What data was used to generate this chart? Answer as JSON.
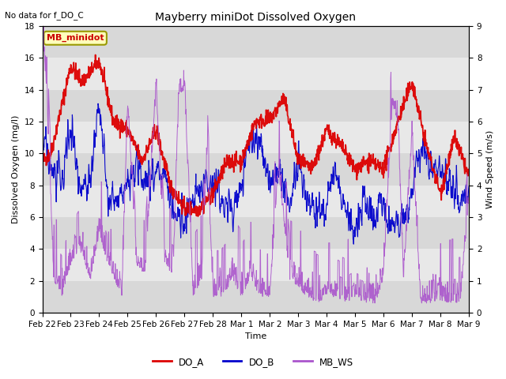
{
  "title": "Mayberry miniDot Dissolved Oxygen",
  "top_left_text": "No data for f_DO_C",
  "annotation_box": "MB_minidot",
  "xlabel": "Time",
  "ylabel_left": "Dissolved Oxygen (mg/l)",
  "ylabel_right": "Wind Speed (m/s)",
  "ylim_left": [
    0,
    18
  ],
  "ylim_right": [
    0.0,
    9.0
  ],
  "yticks_left": [
    0,
    2,
    4,
    6,
    8,
    10,
    12,
    14,
    16,
    18
  ],
  "yticks_right": [
    0.0,
    1.0,
    2.0,
    3.0,
    4.0,
    5.0,
    6.0,
    7.0,
    8.0,
    9.0
  ],
  "xtick_labels": [
    "Feb 22",
    "Feb 23",
    "Feb 24",
    "Feb 25",
    "Feb 26",
    "Feb 27",
    "Feb 28",
    "Mar 1",
    "Mar 2",
    "Mar 3",
    "Mar 4",
    "Mar 5",
    "Mar 6",
    "Mar 7",
    "Mar 8",
    "Mar 9"
  ],
  "legend_labels": [
    "DO_A",
    "DO_B",
    "MB_WS"
  ],
  "line_colors": {
    "DO_A": "#dd0000",
    "DO_B": "#0000cc",
    "MB_WS": "#aa55cc"
  },
  "background_color": "#ffffff",
  "plot_bg_color": "#d8d8d8",
  "plot_bg_light": "#e8e8e8",
  "grid_color": "#c0c0c0",
  "annotation_bg": "#ffffbb",
  "annotation_border": "#999900"
}
